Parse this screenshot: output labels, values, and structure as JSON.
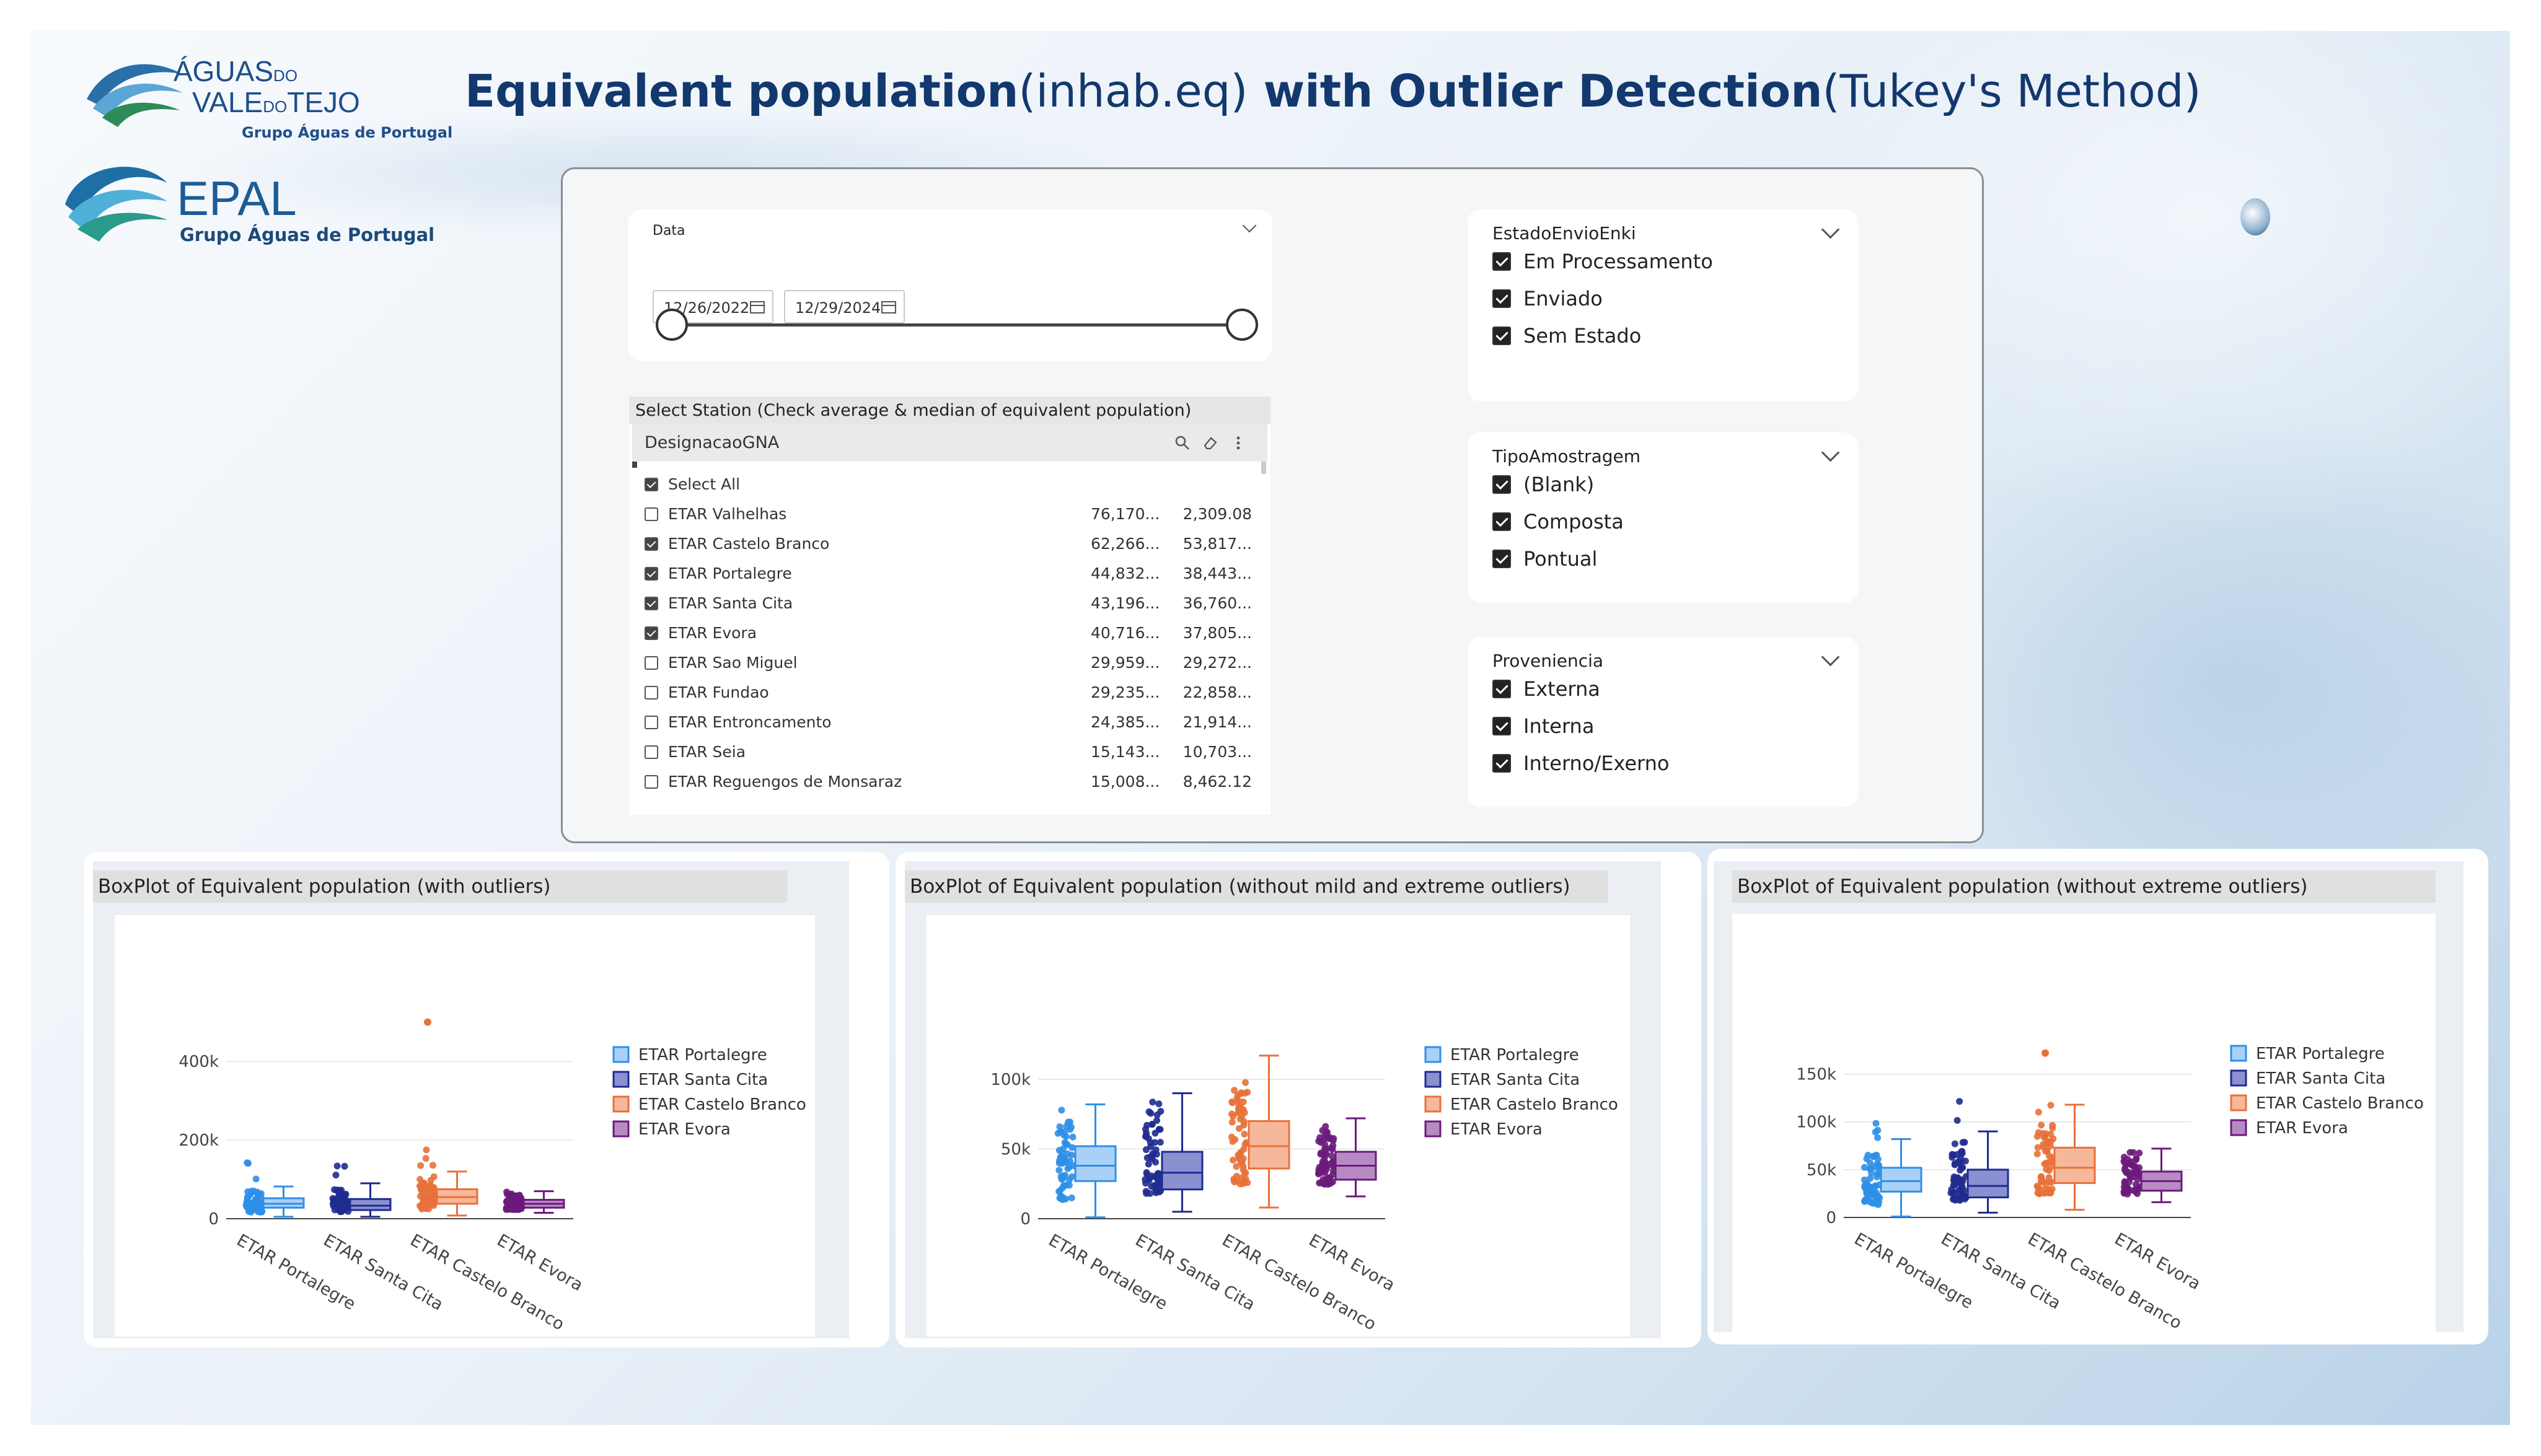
{
  "logos": {
    "aguas_line1": "ÁGUAS",
    "aguas_do": "DO",
    "aguas_line2a": "VALE",
    "aguas_do2": "DO",
    "aguas_line2b": "TEJO",
    "aguas_sub": "Grupo Águas de Portugal",
    "epal_name": "EPAL",
    "epal_sub": "Grupo Águas de Portugal"
  },
  "title": {
    "bold1": "Equivalent population",
    "normal1": "(inhab.eq)",
    "bold2": " with Outlier Detection",
    "normal2": "(Tukey's Method)"
  },
  "date_filter": {
    "label": "Data",
    "start": "12/26/2022",
    "end": "12/29/2024"
  },
  "estado": {
    "title": "EstadoEnvioEnki",
    "options": [
      {
        "label": "Em Processamento",
        "checked": true
      },
      {
        "label": "Enviado",
        "checked": true
      },
      {
        "label": "Sem Estado",
        "checked": true
      }
    ]
  },
  "tipo": {
    "title": "TipoAmostragem",
    "options": [
      {
        "label": "(Blank)",
        "checked": true
      },
      {
        "label": "Composta",
        "checked": true
      },
      {
        "label": "Pontual",
        "checked": true
      }
    ]
  },
  "proveniencia": {
    "title": "Proveniencia",
    "options": [
      {
        "label": "Externa",
        "checked": true
      },
      {
        "label": "Interna",
        "checked": true
      },
      {
        "label": "Interno/Exerno",
        "checked": true
      }
    ]
  },
  "station": {
    "title": "Select Station (Check average & median of equivalent population)",
    "column": "DesignacaoGNA",
    "select_all": "Select All",
    "rows": [
      {
        "name": "ETAR Valhelhas",
        "avg": "76,170...",
        "median": "2,309.08",
        "checked": false
      },
      {
        "name": "ETAR Castelo Branco",
        "avg": "62,266...",
        "median": "53,817...",
        "checked": true
      },
      {
        "name": "ETAR Portalegre",
        "avg": "44,832...",
        "median": "38,443...",
        "checked": true
      },
      {
        "name": "ETAR Santa Cita",
        "avg": "43,196...",
        "median": "36,760...",
        "checked": true
      },
      {
        "name": "ETAR Evora",
        "avg": "40,716...",
        "median": "37,805...",
        "checked": true
      },
      {
        "name": "ETAR Sao Miguel",
        "avg": "29,959...",
        "median": "29,272...",
        "checked": false
      },
      {
        "name": "ETAR Fundao",
        "avg": "29,235...",
        "median": "22,858...",
        "checked": false
      },
      {
        "name": "ETAR Entroncamento",
        "avg": "24,385...",
        "median": "21,914...",
        "checked": false
      },
      {
        "name": "ETAR Seia",
        "avg": "15,143...",
        "median": "10,703...",
        "checked": false
      },
      {
        "name": "ETAR Reguengos de Monsaraz",
        "avg": "15,008...",
        "median": "8,462.12",
        "checked": false
      }
    ]
  },
  "colors": {
    "portalegre": "#2f8fe8",
    "santa_cita": "#1f2b8f",
    "castelo_branco": "#e8713a",
    "evora": "#6a1b7a",
    "title_navy": "#12386e"
  },
  "chart_data": [
    {
      "type": "box",
      "title": "BoxPlot of Equivalent population (with outliers)",
      "categories": [
        "ETAR Portalegre",
        "ETAR Santa Cita",
        "ETAR Castelo Branco",
        "ETAR Evora"
      ],
      "ylim": [
        0,
        520000
      ],
      "yticks": [
        0,
        200000,
        400000
      ],
      "ytick_labels": [
        "0",
        "200k",
        "400k"
      ],
      "legend_position": "right",
      "series": [
        {
          "name": "ETAR Portalegre",
          "min": 5000,
          "q1": 28000,
          "median": 38000,
          "q3": 52000,
          "max": 82000,
          "points_max": 150000,
          "outliers": []
        },
        {
          "name": "ETAR Santa Cita",
          "min": 5000,
          "q1": 22000,
          "median": 33000,
          "q3": 50000,
          "max": 90000,
          "points_max": 150000,
          "outliers": []
        },
        {
          "name": "ETAR Castelo Branco",
          "min": 8000,
          "q1": 38000,
          "median": 55000,
          "q3": 75000,
          "max": 120000,
          "points_max": 180000,
          "outliers": [
            500000
          ]
        },
        {
          "name": "ETAR Evora",
          "min": 15000,
          "q1": 28000,
          "median": 38000,
          "q3": 48000,
          "max": 70000,
          "points_max": 70000,
          "outliers": []
        }
      ]
    },
    {
      "type": "box",
      "title": "BoxPlot of Equivalent population (without mild and extreme outliers)",
      "categories": [
        "ETAR Portalegre",
        "ETAR Santa Cita",
        "ETAR Castelo Branco",
        "ETAR Evora"
      ],
      "ylim": [
        0,
        120000
      ],
      "yticks": [
        0,
        50000,
        100000
      ],
      "ytick_labels": [
        "0",
        "50k",
        "100k"
      ],
      "legend_position": "right",
      "series": [
        {
          "name": "ETAR Portalegre",
          "min": 1000,
          "q1": 27000,
          "median": 38000,
          "q3": 52000,
          "max": 82000,
          "points_max": 82000,
          "outliers": []
        },
        {
          "name": "ETAR Santa Cita",
          "min": 5000,
          "q1": 21000,
          "median": 33000,
          "q3": 48000,
          "max": 90000,
          "points_max": 92000,
          "outliers": []
        },
        {
          "name": "ETAR Castelo Branco",
          "min": 8000,
          "q1": 36000,
          "median": 52000,
          "q3": 70000,
          "max": 117000,
          "points_max": 117000,
          "outliers": []
        },
        {
          "name": "ETAR Evora",
          "min": 16000,
          "q1": 28000,
          "median": 38000,
          "q3": 48000,
          "max": 72000,
          "points_max": 72000,
          "outliers": []
        }
      ]
    },
    {
      "type": "box",
      "title": "BoxPlot of Equivalent population (without extreme outliers)",
      "categories": [
        "ETAR Portalegre",
        "ETAR Santa Cita",
        "ETAR Castelo Branco",
        "ETAR Evora"
      ],
      "ylim": [
        0,
        175000
      ],
      "yticks": [
        0,
        50000,
        100000,
        150000
      ],
      "ytick_labels": [
        "0",
        "50k",
        "100k",
        "150k"
      ],
      "legend_position": "right",
      "series": [
        {
          "name": "ETAR Portalegre",
          "min": 1000,
          "q1": 27000,
          "median": 38000,
          "q3": 52000,
          "max": 82000,
          "points_max": 112000,
          "outliers": []
        },
        {
          "name": "ETAR Santa Cita",
          "min": 5000,
          "q1": 21000,
          "median": 33000,
          "q3": 50000,
          "max": 90000,
          "points_max": 125000,
          "outliers": []
        },
        {
          "name": "ETAR Castelo Branco",
          "min": 8000,
          "q1": 36000,
          "median": 52000,
          "q3": 73000,
          "max": 118000,
          "points_max": 135000,
          "outliers": [
            172000
          ]
        },
        {
          "name": "ETAR Evora",
          "min": 16000,
          "q1": 28000,
          "median": 38000,
          "q3": 48000,
          "max": 72000,
          "points_max": 72000,
          "outliers": []
        }
      ]
    }
  ]
}
